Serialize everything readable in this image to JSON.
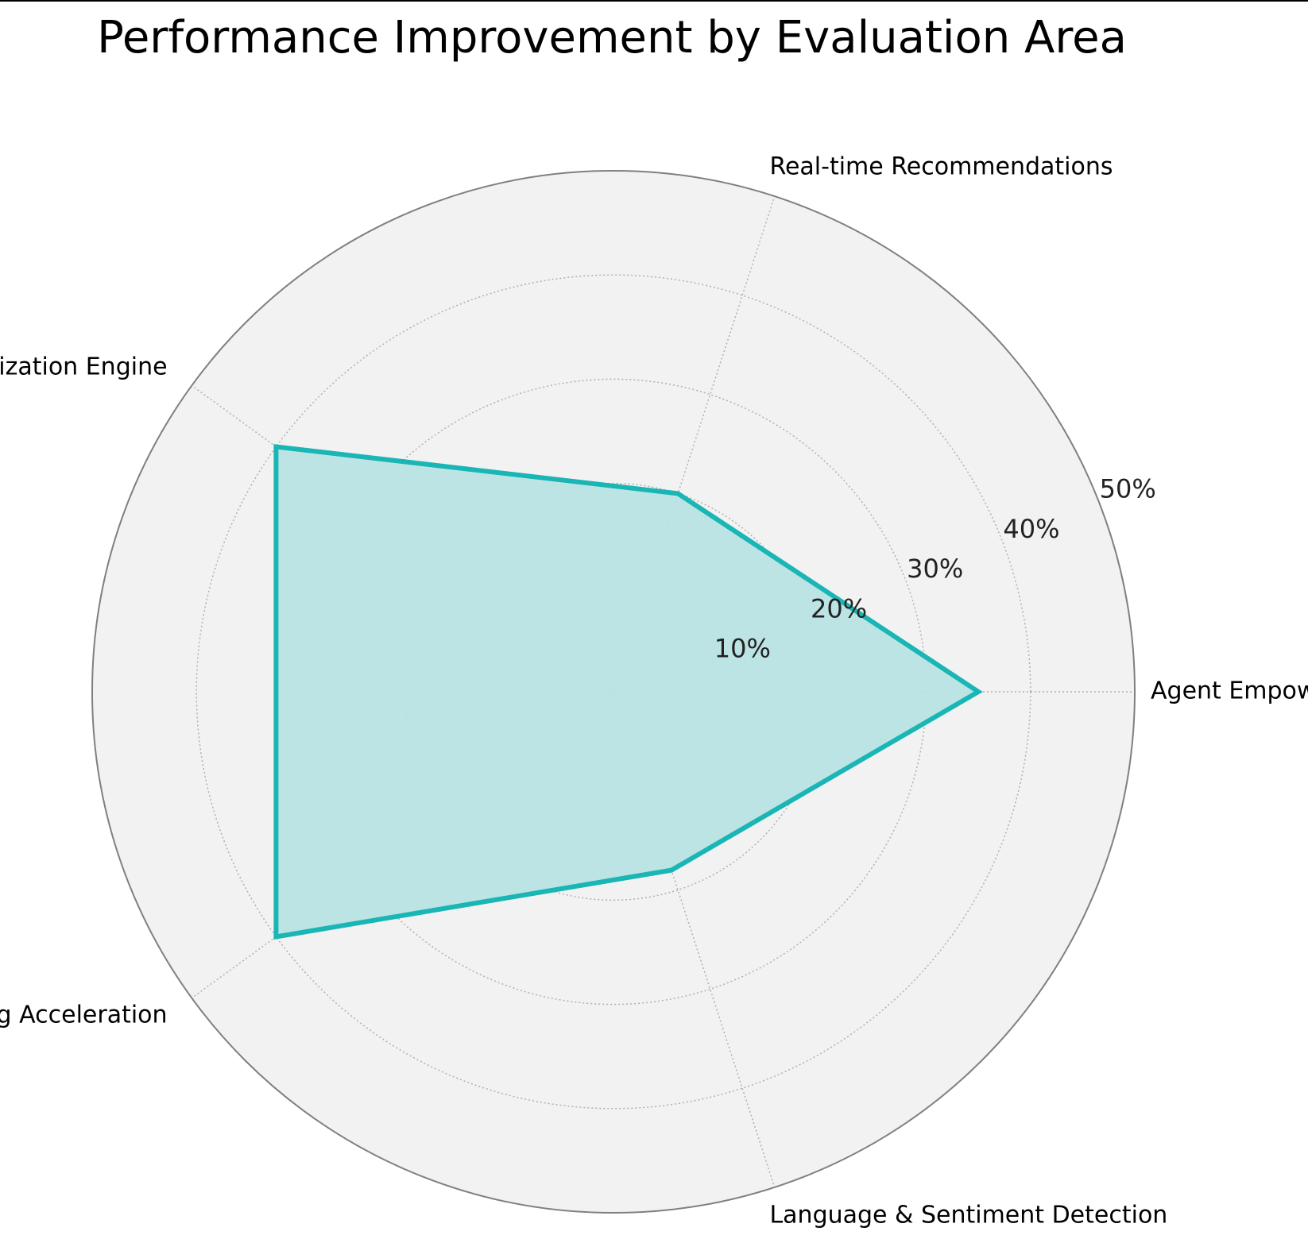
{
  "chart_data": {
    "type": "radar",
    "title": "Performance Improvement by Evaluation Area",
    "categories": [
      "Agent Empowerment",
      "Real-time Recommendations",
      "Summarization Engine",
      "Onboarding Acceleration",
      "Language & Sentiment Detection"
    ],
    "values": [
      35,
      20,
      40,
      40,
      18
    ],
    "rmax": 50,
    "r_ticks": [
      10,
      20,
      30,
      40,
      50
    ],
    "r_tick_labels": [
      "10%",
      "20%",
      "30%",
      "40%",
      "50%"
    ],
    "grid": true,
    "colors": {
      "line": "#1ab5b5",
      "fill": "#b9e3e3",
      "background": "#f2f2f2",
      "outer_ring": "#808080",
      "grid": "#b0b0b0"
    }
  }
}
